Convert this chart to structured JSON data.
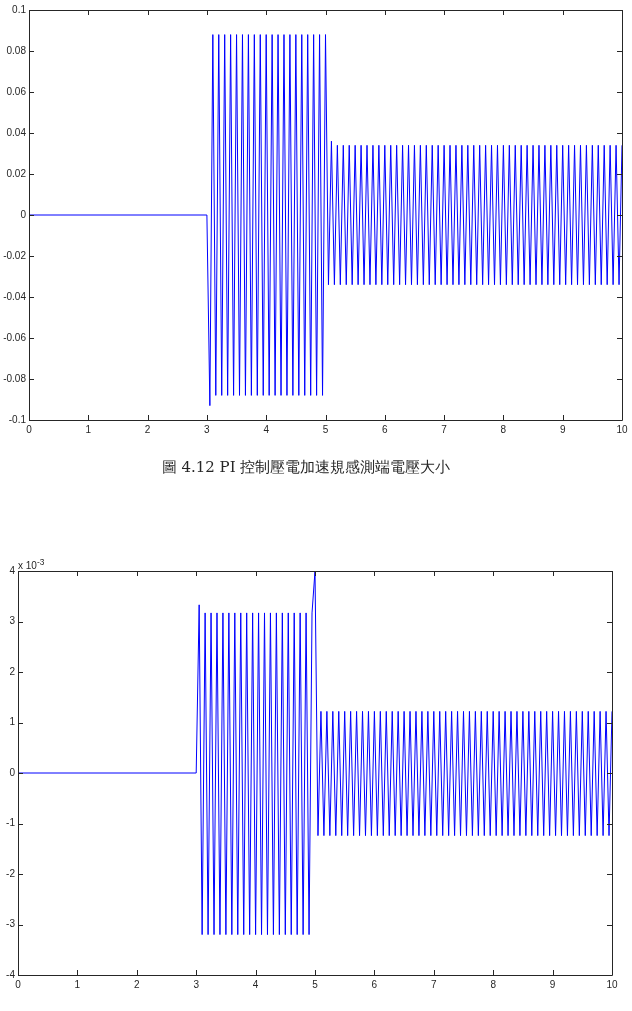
{
  "chart_data": [
    {
      "type": "line",
      "annotations": [
        "圖 4.12 PI 控制壓電加速規感測端電壓大小"
      ],
      "x": [
        0,
        3,
        3.05,
        3.1,
        3.15,
        3.2,
        3.25,
        3.3,
        3.35,
        3.4,
        3.45,
        3.5,
        3.55,
        3.6,
        3.65,
        3.7,
        3.75,
        3.8,
        3.85,
        3.9,
        3.95,
        4,
        4.05,
        4.1,
        4.15,
        4.2,
        4.25,
        4.3,
        4.35,
        4.4,
        4.45,
        4.5,
        4.55,
        4.6,
        4.65,
        4.7,
        4.75,
        4.8,
        4.85,
        4.9,
        4.95,
        5,
        5.05,
        5.1,
        5.15,
        5.2,
        5.25,
        5.3,
        5.35,
        5.4,
        5.45,
        5.5,
        5.55,
        5.6,
        5.65,
        5.7,
        5.75,
        5.8,
        5.85,
        5.9,
        5.95,
        6,
        6.05,
        6.1,
        6.15,
        6.2,
        6.25,
        6.3,
        6.35,
        6.4,
        6.45,
        6.5,
        6.55,
        6.6,
        6.65,
        6.7,
        6.75,
        6.8,
        6.85,
        6.9,
        6.95,
        7,
        7.05,
        7.1,
        7.15,
        7.2,
        7.25,
        7.3,
        7.35,
        7.4,
        7.45,
        7.5,
        7.55,
        7.6,
        7.65,
        7.7,
        7.75,
        7.8,
        7.85,
        7.9,
        7.95,
        8,
        8.05,
        8.1,
        8.15,
        8.2,
        8.25,
        8.3,
        8.35,
        8.4,
        8.45,
        8.5,
        8.55,
        8.6,
        8.65,
        8.7,
        8.75,
        8.8,
        8.85,
        8.9,
        8.95,
        9,
        9.05,
        9.1,
        9.15,
        9.2,
        9.25,
        9.3,
        9.35,
        9.4,
        9.45,
        9.5,
        9.55,
        9.6,
        9.65,
        9.7,
        9.75,
        9.8,
        9.85,
        9.9,
        9.95,
        10
      ],
      "series": [
        {
          "color": "#0000ff",
          "values": [
            0,
            0,
            -0.093,
            0.088,
            -0.088,
            0.088,
            -0.088,
            0.088,
            -0.088,
            0.088,
            -0.088,
            0.088,
            -0.088,
            0.088,
            -0.088,
            0.088,
            -0.088,
            0.088,
            -0.088,
            0.088,
            -0.088,
            0.088,
            -0.088,
            0.088,
            -0.088,
            0.088,
            -0.088,
            0.088,
            -0.088,
            0.088,
            -0.088,
            0.088,
            -0.088,
            0.088,
            -0.088,
            0.088,
            -0.088,
            0.088,
            -0.088,
            0.088,
            -0.088,
            0.088,
            -0.034,
            0.036,
            -0.034,
            0.034,
            -0.034,
            0.034,
            -0.034,
            0.034,
            -0.034,
            0.034,
            -0.034,
            0.034,
            -0.034,
            0.034,
            -0.034,
            0.034,
            -0.034,
            0.034,
            -0.034,
            0.034,
            -0.034,
            0.034,
            -0.034,
            0.034,
            -0.034,
            0.034,
            -0.034,
            0.034,
            -0.034,
            0.034,
            -0.034,
            0.034,
            -0.034,
            0.034,
            -0.034,
            0.034,
            -0.034,
            0.034,
            -0.034,
            0.034,
            -0.034,
            0.034,
            -0.034,
            0.034,
            -0.034,
            0.034,
            -0.034,
            0.034,
            -0.034,
            0.034,
            -0.034,
            0.034,
            -0.034,
            0.034,
            -0.034,
            0.034,
            -0.034,
            0.034,
            -0.034,
            0.034,
            -0.034,
            0.034,
            -0.034,
            0.034,
            -0.034,
            0.034,
            -0.034,
            0.034,
            -0.034,
            0.034,
            -0.034,
            0.034,
            -0.034,
            0.034,
            -0.034,
            0.034,
            -0.034,
            0.034,
            -0.034,
            0.034,
            -0.034,
            0.034,
            -0.034,
            0.034,
            -0.034,
            0.034,
            -0.034,
            0.034,
            -0.034,
            0.034,
            -0.034,
            0.034,
            -0.034,
            0.034,
            -0.034,
            0.034,
            -0.034,
            0.034,
            -0.034,
            0.034
          ]
        }
      ],
      "xlim": [
        0,
        10
      ],
      "xticks": [
        0,
        1,
        2,
        3,
        4,
        5,
        6,
        7,
        8,
        9,
        10
      ],
      "ylim": [
        -0.1,
        0.1
      ],
      "yticks": [
        -0.1,
        -0.08,
        -0.06,
        -0.04,
        -0.02,
        0,
        0.02,
        0.04,
        0.06,
        0.08,
        0.1
      ]
    },
    {
      "type": "line",
      "annotations": [
        "x 10$^{-3}$"
      ],
      "x": [
        0,
        3,
        3.05,
        3.1,
        3.15,
        3.2,
        3.25,
        3.3,
        3.35,
        3.4,
        3.45,
        3.5,
        3.55,
        3.6,
        3.65,
        3.7,
        3.75,
        3.8,
        3.85,
        3.9,
        3.95,
        4,
        4.05,
        4.1,
        4.15,
        4.2,
        4.25,
        4.3,
        4.35,
        4.4,
        4.45,
        4.5,
        4.55,
        4.6,
        4.65,
        4.7,
        4.75,
        4.8,
        4.85,
        4.9,
        4.95,
        5,
        5.05,
        5.1,
        5.15,
        5.2,
        5.25,
        5.3,
        5.35,
        5.4,
        5.45,
        5.5,
        5.55,
        5.6,
        5.65,
        5.7,
        5.75,
        5.8,
        5.85,
        5.9,
        5.95,
        6,
        6.05,
        6.1,
        6.15,
        6.2,
        6.25,
        6.3,
        6.35,
        6.4,
        6.45,
        6.5,
        6.55,
        6.6,
        6.65,
        6.7,
        6.75,
        6.8,
        6.85,
        6.9,
        6.95,
        7,
        7.05,
        7.1,
        7.15,
        7.2,
        7.25,
        7.3,
        7.35,
        7.4,
        7.45,
        7.5,
        7.55,
        7.6,
        7.65,
        7.7,
        7.75,
        7.8,
        7.85,
        7.9,
        7.95,
        8,
        8.05,
        8.1,
        8.15,
        8.2,
        8.25,
        8.3,
        8.35,
        8.4,
        8.45,
        8.5,
        8.55,
        8.6,
        8.65,
        8.7,
        8.75,
        8.8,
        8.85,
        8.9,
        8.95,
        9,
        9.05,
        9.1,
        9.15,
        9.2,
        9.25,
        9.3,
        9.35,
        9.4,
        9.45,
        9.5,
        9.55,
        9.6,
        9.65,
        9.7,
        9.75,
        9.8,
        9.85,
        9.9,
        9.95,
        10
      ],
      "series": [
        {
          "color": "#0000ff",
          "values": [
            0,
            0,
            3.33,
            -3.2,
            3.17,
            -3.2,
            3.17,
            -3.2,
            3.17,
            -3.2,
            3.17,
            -3.2,
            3.17,
            -3.2,
            3.17,
            -3.2,
            3.17,
            -3.2,
            3.17,
            -3.2,
            3.17,
            -3.2,
            3.17,
            -3.2,
            3.17,
            -3.2,
            3.17,
            -3.2,
            3.17,
            -3.2,
            3.17,
            -3.2,
            3.17,
            -3.2,
            3.17,
            -3.2,
            3.17,
            -3.2,
            3.17,
            -3.2,
            3.17,
            4,
            -1.24,
            1.22,
            -1.24,
            1.22,
            -1.24,
            1.22,
            -1.24,
            1.22,
            -1.24,
            1.22,
            -1.24,
            1.22,
            -1.24,
            1.22,
            -1.24,
            1.22,
            -1.24,
            1.22,
            -1.24,
            1.22,
            -1.24,
            1.22,
            -1.24,
            1.22,
            -1.24,
            1.22,
            -1.24,
            1.22,
            -1.24,
            1.22,
            -1.24,
            1.22,
            -1.24,
            1.22,
            -1.24,
            1.22,
            -1.24,
            1.22,
            -1.24,
            1.22,
            -1.24,
            1.22,
            -1.24,
            1.22,
            -1.24,
            1.22,
            -1.24,
            1.22,
            -1.24,
            1.22,
            -1.24,
            1.22,
            -1.24,
            1.22,
            -1.24,
            1.22,
            -1.24,
            1.22,
            -1.24,
            1.22,
            -1.24,
            1.22,
            -1.24,
            1.22,
            -1.24,
            1.22,
            -1.24,
            1.22,
            -1.24,
            1.22,
            -1.24,
            1.22,
            -1.24,
            1.22,
            -1.24,
            1.22,
            -1.24,
            1.22,
            -1.24,
            1.22,
            -1.24,
            1.22,
            -1.24,
            1.22,
            -1.24,
            1.22,
            -1.24,
            1.22,
            -1.24,
            1.22,
            -1.24,
            1.22,
            -1.24,
            1.22,
            -1.24,
            1.22,
            -1.24,
            1.22,
            -1.24,
            1.22
          ]
        }
      ],
      "xlim": [
        0,
        10
      ],
      "xticks": [
        0,
        1,
        2,
        3,
        4,
        5,
        6,
        7,
        8,
        9,
        10
      ],
      "ylim": [
        -4,
        4
      ],
      "yticks": [
        -4,
        -3,
        -2,
        -1,
        0,
        1,
        2,
        3,
        4
      ]
    }
  ]
}
